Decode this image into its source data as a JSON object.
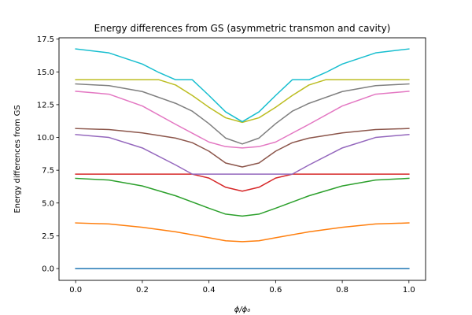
{
  "chart_data": {
    "type": "line",
    "title": "Energy differences from GS (asymmetric transmon and cavity)",
    "xlabel": "ϕ/ϕ₀",
    "ylabel": "Energy differences from GS",
    "xlim": [
      -0.05,
      1.05
    ],
    "ylim": [
      -0.9,
      17.6
    ],
    "xticks": [
      0.0,
      0.2,
      0.4,
      0.6,
      0.8,
      1.0
    ],
    "xtick_labels": [
      "0.0",
      "0.2",
      "0.4",
      "0.6",
      "0.8",
      "1.0"
    ],
    "yticks": [
      0.0,
      2.5,
      5.0,
      7.5,
      10.0,
      12.5,
      15.0,
      17.5
    ],
    "ytick_labels": [
      "0.0",
      "2.5",
      "5.0",
      "7.5",
      "10.0",
      "12.5",
      "15.0",
      "17.5"
    ],
    "grid": false,
    "legend": "none",
    "series": [
      {
        "color": "#1f77b4",
        "x": [
          0,
          0.1,
          0.2,
          0.3,
          0.4,
          0.5,
          0.6,
          0.7,
          0.8,
          0.9,
          1.0
        ],
        "y": [
          0,
          0,
          0,
          0,
          0,
          0,
          0,
          0,
          0,
          0,
          0
        ]
      },
      {
        "color": "#ff7f0e",
        "x": [
          0,
          0.1,
          0.2,
          0.3,
          0.4,
          0.45,
          0.5,
          0.55,
          0.6,
          0.7,
          0.8,
          0.9,
          1.0
        ],
        "y": [
          3.48,
          3.4,
          3.15,
          2.8,
          2.35,
          2.12,
          2.05,
          2.12,
          2.35,
          2.8,
          3.15,
          3.4,
          3.48
        ]
      },
      {
        "color": "#2ca02c",
        "x": [
          0,
          0.1,
          0.2,
          0.3,
          0.4,
          0.45,
          0.5,
          0.55,
          0.6,
          0.7,
          0.8,
          0.9,
          1.0
        ],
        "y": [
          6.88,
          6.75,
          6.3,
          5.55,
          4.6,
          4.15,
          4.0,
          4.15,
          4.6,
          5.55,
          6.3,
          6.75,
          6.88
        ]
      },
      {
        "color": "#d62728",
        "x": [
          0,
          0.3,
          0.35,
          0.4,
          0.45,
          0.5,
          0.55,
          0.6,
          0.65,
          0.7,
          1.0
        ],
        "y": [
          7.2,
          7.2,
          7.2,
          6.9,
          6.2,
          5.9,
          6.2,
          6.9,
          7.2,
          7.2,
          7.2
        ]
      },
      {
        "color": "#9467bd",
        "x": [
          0,
          0.1,
          0.2,
          0.3,
          0.35,
          0.4,
          0.5,
          0.6,
          0.65,
          0.7,
          0.8,
          0.9,
          1.0
        ],
        "y": [
          10.22,
          10.0,
          9.2,
          7.9,
          7.2,
          7.2,
          7.2,
          7.2,
          7.2,
          7.9,
          9.2,
          10.0,
          10.22
        ]
      },
      {
        "color": "#8c564b",
        "x": [
          0,
          0.1,
          0.2,
          0.3,
          0.35,
          0.4,
          0.45,
          0.5,
          0.55,
          0.6,
          0.65,
          0.7,
          0.8,
          0.9,
          1.0
        ],
        "y": [
          10.68,
          10.6,
          10.35,
          9.95,
          9.6,
          8.95,
          8.05,
          7.75,
          8.05,
          8.95,
          9.6,
          9.95,
          10.35,
          10.6,
          10.68
        ]
      },
      {
        "color": "#e377c2",
        "x": [
          0,
          0.1,
          0.2,
          0.3,
          0.4,
          0.45,
          0.5,
          0.55,
          0.6,
          0.7,
          0.8,
          0.9,
          1.0
        ],
        "y": [
          13.52,
          13.3,
          12.4,
          11.0,
          9.65,
          9.3,
          9.2,
          9.3,
          9.65,
          11.0,
          12.4,
          13.3,
          13.52
        ]
      },
      {
        "color": "#7f7f7f",
        "x": [
          0,
          0.1,
          0.2,
          0.3,
          0.35,
          0.4,
          0.45,
          0.5,
          0.55,
          0.6,
          0.65,
          0.7,
          0.8,
          0.9,
          1.0
        ],
        "y": [
          14.08,
          13.95,
          13.5,
          12.6,
          12.0,
          11.05,
          9.95,
          9.5,
          9.95,
          11.05,
          12.0,
          12.6,
          13.5,
          13.95,
          14.08
        ]
      },
      {
        "color": "#bcbd22",
        "x": [
          0,
          0.1,
          0.2,
          0.25,
          0.3,
          0.35,
          0.4,
          0.45,
          0.5,
          0.55,
          0.6,
          0.65,
          0.7,
          0.75,
          0.8,
          0.9,
          1.0
        ],
        "y": [
          14.4,
          14.4,
          14.4,
          14.4,
          14.0,
          13.2,
          12.3,
          11.5,
          11.15,
          11.5,
          12.3,
          13.2,
          14.0,
          14.4,
          14.4,
          14.4,
          14.4
        ]
      },
      {
        "color": "#17becf",
        "x": [
          0,
          0.1,
          0.2,
          0.25,
          0.3,
          0.35,
          0.4,
          0.45,
          0.5,
          0.55,
          0.6,
          0.65,
          0.7,
          0.75,
          0.8,
          0.9,
          1.0
        ],
        "y": [
          16.75,
          16.45,
          15.6,
          14.95,
          14.4,
          14.4,
          13.2,
          11.95,
          11.2,
          11.95,
          13.2,
          14.4,
          14.4,
          14.95,
          15.6,
          16.45,
          16.75
        ]
      }
    ]
  }
}
